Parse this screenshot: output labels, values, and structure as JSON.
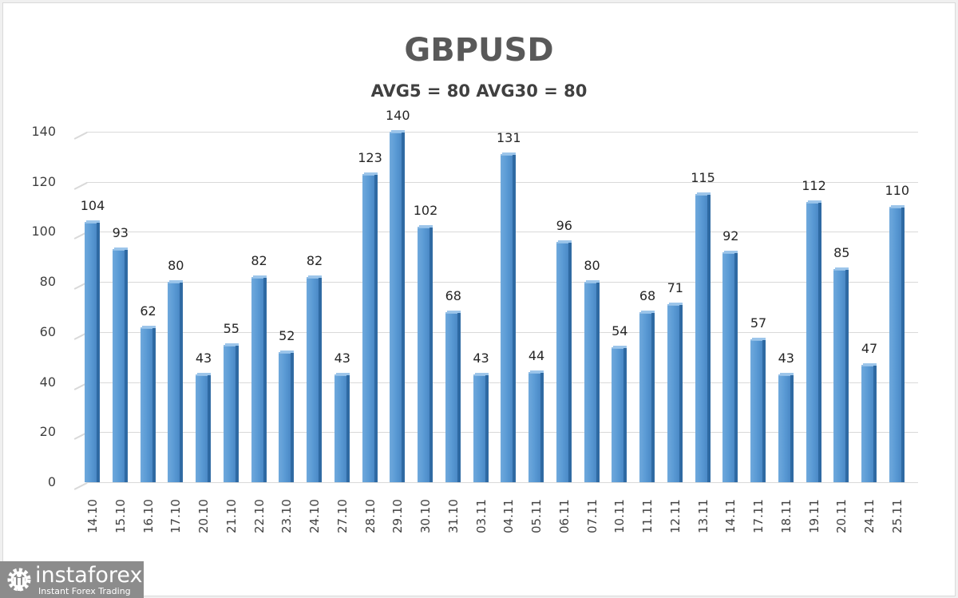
{
  "header": {
    "title": "GBPUSD",
    "subtitle": "AVG5 = 80 AVG30 = 80"
  },
  "logo": {
    "name": "instaforex",
    "tagline": "Instant Forex Trading",
    "icon": "gear-person-icon"
  },
  "colors": {
    "bar": "#5b9bd5",
    "bar_dark": "#2f6aa3",
    "grid": "#d9d9d9",
    "title": "#595959",
    "logo_bg": "#8c8c8c"
  },
  "chart_data": {
    "type": "bar",
    "title": "GBPUSD",
    "subtitle": "AVG5 = 80 AVG30 = 80",
    "xlabel": "",
    "ylabel": "",
    "ylim": [
      0,
      140
    ],
    "yticks": [
      0,
      20,
      40,
      60,
      80,
      100,
      120,
      140
    ],
    "grid": true,
    "legend": "none",
    "data_labels": true,
    "categories": [
      "14.10",
      "15.10",
      "16.10",
      "17.10",
      "20.10",
      "21.10",
      "22.10",
      "23.10",
      "24.10",
      "27.10",
      "28.10",
      "29.10",
      "30.10",
      "31.10",
      "03.11",
      "04.11",
      "05.11",
      "06.11",
      "07.11",
      "10.11",
      "11.11",
      "12.11",
      "13.11",
      "14.11",
      "17.11",
      "18.11",
      "19.11",
      "20.11",
      "24.11",
      "25.11"
    ],
    "values": [
      104,
      93,
      62,
      80,
      43,
      55,
      82,
      52,
      82,
      43,
      123,
      140,
      102,
      68,
      43,
      131,
      44,
      96,
      80,
      54,
      68,
      71,
      115,
      92,
      57,
      43,
      112,
      85,
      47,
      110
    ]
  }
}
